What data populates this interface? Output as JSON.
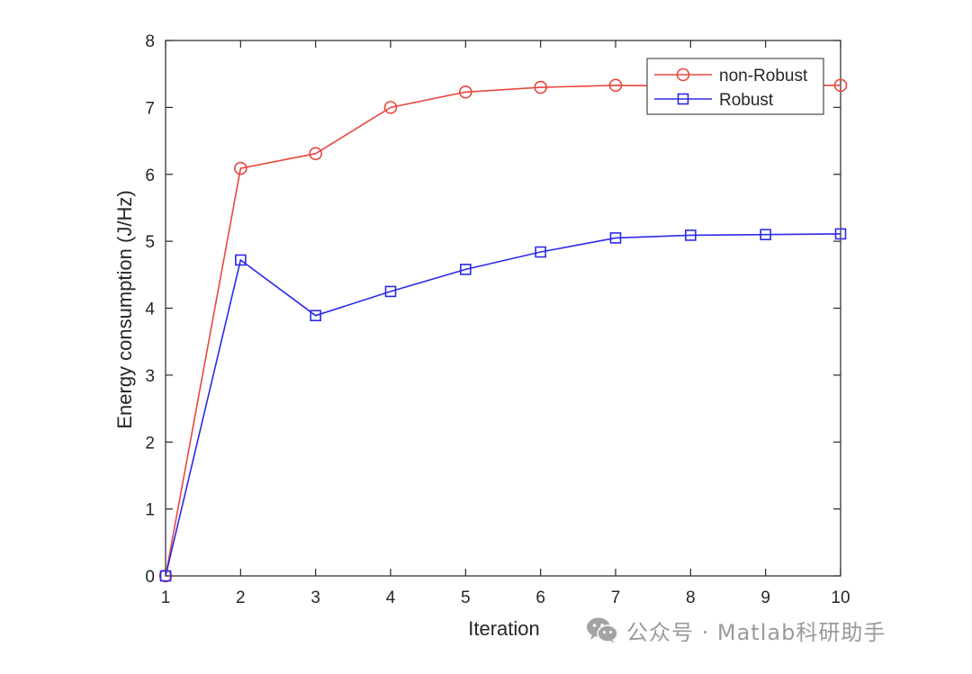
{
  "chart_data": {
    "type": "line",
    "title": "",
    "xlabel": "Iteration",
    "ylabel": "Energy consumption (J/Hz)",
    "x": [
      1,
      2,
      3,
      4,
      5,
      6,
      7,
      8,
      9,
      10
    ],
    "xlim": [
      1,
      10
    ],
    "ylim": [
      0,
      8
    ],
    "xticks": [
      1,
      2,
      3,
      4,
      5,
      6,
      7,
      8,
      9,
      10
    ],
    "yticks": [
      0,
      1,
      2,
      3,
      4,
      5,
      6,
      7,
      8
    ],
    "grid": false,
    "legend_position": "top-right",
    "series": [
      {
        "name": "non-Robust",
        "color": "#e8473f",
        "marker": "circle",
        "values": [
          0,
          6.09,
          6.31,
          7.0,
          7.23,
          7.3,
          7.33,
          7.32,
          7.33,
          7.33
        ]
      },
      {
        "name": "Robust",
        "color": "#2a2ae6",
        "marker": "square",
        "values": [
          0,
          4.72,
          3.89,
          4.25,
          4.58,
          4.84,
          5.05,
          5.09,
          5.1,
          5.11
        ]
      }
    ]
  },
  "watermark": {
    "icon": "wechat-icon",
    "text": "公众号 · Matlab科研助手"
  }
}
